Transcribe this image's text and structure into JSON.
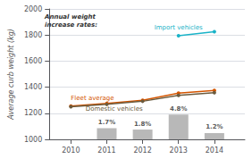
{
  "chart_data": {
    "type": "bar",
    "ylabel": "Average curb weight (kg)",
    "annotation": "Annual weight\nincrease rates:",
    "xlim": [
      2009.4,
      2014.85
    ],
    "xticks": [
      2010,
      2011,
      2012,
      2013,
      2014
    ],
    "ylim": [
      1000,
      2000
    ],
    "yticks": [
      1000,
      1200,
      1400,
      1600,
      1800,
      2000
    ],
    "grid": true,
    "series": [
      {
        "type": "bar",
        "color": "#b0b0b0",
        "x": [
          2011,
          2012,
          2013,
          2014
        ],
        "values": [
          1085,
          1075,
          1190,
          1048
        ],
        "labels": [
          "1.7%",
          "1.8%",
          "4.8%",
          "1.2%"
        ]
      },
      {
        "name": "Fleet average",
        "type": "line",
        "color": "#d45500",
        "marker": "circle",
        "x": [
          2010,
          2011,
          2012,
          2013,
          2014
        ],
        "values": [
          1255,
          1275,
          1300,
          1355,
          1375
        ]
      },
      {
        "name": "Domestic vehicles",
        "type": "line",
        "color": "#6b5b3e",
        "marker": "circle",
        "x": [
          2010,
          2011,
          2012,
          2013,
          2014
        ],
        "values": [
          1250,
          1268,
          1292,
          1338,
          1358
        ]
      },
      {
        "name": "Import vehicles",
        "type": "line",
        "color": "#1ab3c8",
        "marker": "circle",
        "x": [
          2013,
          2014
        ],
        "values": [
          1795,
          1825
        ]
      }
    ]
  }
}
